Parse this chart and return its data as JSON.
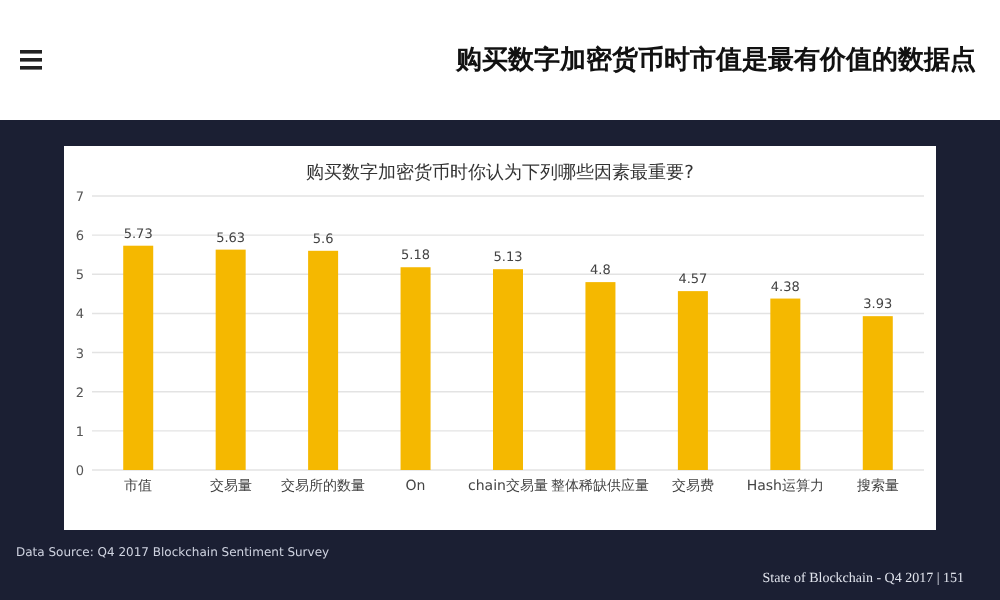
{
  "chart_data": {
    "type": "bar",
    "title": "购买数字加密货币时你认为下列哪些因素最重要?",
    "subtitle": "购买数字加密货币时市值是最有价值的数据点",
    "categories": [
      "市值",
      "交易量",
      "交易所的数量",
      "On",
      "chain交易量",
      "整体稀缺供应量",
      "交易费",
      "Hash运算力",
      "搜索量"
    ],
    "values": [
      5.73,
      5.63,
      5.6,
      5.18,
      5.13,
      4.8,
      4.57,
      4.38,
      3.93
    ],
    "color": "#f5b800",
    "ylim": [
      0,
      7
    ],
    "yticks": [
      0,
      1,
      2,
      3,
      4,
      5,
      6,
      7
    ],
    "grid": "y",
    "data_labels": true,
    "annotations": [
      "Data Source: Q4 2017 Blockchain Sentiment Survey",
      "State of Blockchain - Q4 2017   |   151"
    ]
  }
}
